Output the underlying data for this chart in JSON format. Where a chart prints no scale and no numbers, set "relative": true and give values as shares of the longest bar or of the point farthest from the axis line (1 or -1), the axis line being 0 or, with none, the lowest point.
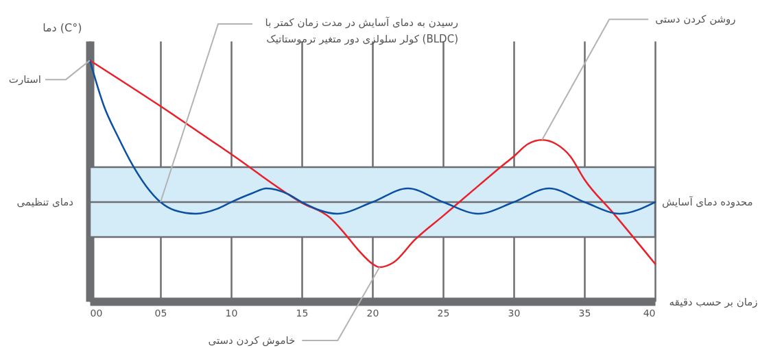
{
  "chart_data": {
    "type": "line",
    "relative": true,
    "xlabel": "زمان بر حسب دقیقه",
    "ylabel": "دما (C°)",
    "x": [
      0,
      1,
      2,
      3,
      4,
      5,
      6,
      7.5,
      9,
      10,
      11.5,
      12.5,
      14,
      15,
      17.5,
      20,
      22.5,
      25,
      27.5,
      30,
      32.5,
      35,
      37.5,
      40
    ],
    "series": [
      {
        "color": "#e8202a",
        "x": [
          0,
          5,
          10,
          15,
          17,
          18,
          19,
          20,
          20.5,
          21.5,
          23,
          25,
          27,
          29,
          30,
          31,
          32,
          33,
          34,
          35,
          37,
          40
        ],
        "values": [
          1.0,
          0.81,
          0.611,
          0.409,
          0.347,
          0.284,
          0.213,
          0.156,
          0.142,
          0.162,
          0.256,
          0.355,
          0.455,
          0.554,
          0.602,
          0.653,
          0.67,
          0.653,
          0.602,
          0.506,
          0.369,
          0.156
        ]
      },
      {
        "color": "#0b4fa3",
        "values": [
          1.0,
          0.81,
          0.682,
          0.568,
          0.477,
          0.412,
          0.378,
          0.364,
          0.384,
          0.412,
          0.449,
          0.469,
          0.446,
          0.412,
          0.364,
          0.412,
          0.469,
          0.412,
          0.364,
          0.412,
          0.469,
          0.412,
          0.364,
          0.412
        ]
      }
    ],
    "xlim": [
      0,
      40
    ],
    "xticks": [
      {
        "value": 0,
        "label": "00"
      },
      {
        "value": 5,
        "label": "05"
      },
      10,
      15,
      20,
      25,
      30,
      35,
      40
    ],
    "grid": "x",
    "bands": [
      {
        "axis": "y",
        "from": 0.267,
        "to": 0.557,
        "label": "محدوده دمای آسایش",
        "color": "#d4ebf8"
      }
    ],
    "ref_lines": [
      {
        "axis": "y",
        "value": 0.412,
        "label": "دمای تنظیمی"
      }
    ],
    "annotations": [
      {
        "text": "استارت",
        "x": 0,
        "y": 1.0
      },
      {
        "text": "رسیدن به دمای آسایش در مدت زمان کمتر  با\nکولر سلولزی دور متغیر ترموستاتیک (BLDC)",
        "x": 5,
        "y": 0.412
      },
      {
        "text": "روشن کردن دستی",
        "x": 32,
        "y": 0.67
      },
      {
        "text": "خاموش کردن دستی",
        "x": 20.5,
        "y": 0.142
      }
    ]
  }
}
